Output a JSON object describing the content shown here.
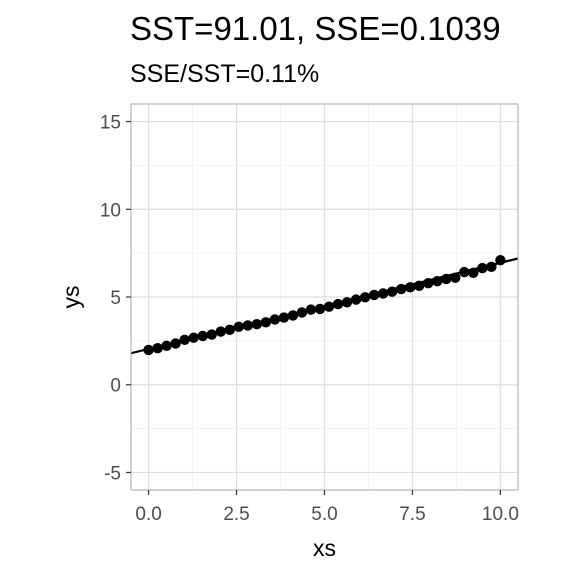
{
  "chart_data": {
    "type": "scatter",
    "title": "SST=91.01, SSE=0.1039",
    "subtitle": "SSE/SST=0.11%",
    "xlabel": "xs",
    "ylabel": "ys",
    "xlim": [
      -0.5,
      10.5
    ],
    "ylim": [
      -6,
      16
    ],
    "x_ticks": [
      0.0,
      2.5,
      5.0,
      7.5,
      10.0
    ],
    "x_tick_labels": [
      "0.0",
      "2.5",
      "5.0",
      "7.5",
      "10.0"
    ],
    "y_ticks": [
      -5,
      0,
      5,
      10,
      15
    ],
    "y_tick_labels": [
      "-5",
      "0",
      "5",
      "10",
      "15"
    ],
    "grid": true,
    "series": [
      {
        "type": "scatter",
        "x": [
          0.0,
          0.2564,
          0.5128,
          0.7692,
          1.0256,
          1.2821,
          1.5385,
          1.7949,
          2.0513,
          2.3077,
          2.5641,
          2.8205,
          3.0769,
          3.3333,
          3.5897,
          3.8462,
          4.1026,
          4.359,
          4.6154,
          4.8718,
          5.1282,
          5.3846,
          5.641,
          5.8974,
          6.1538,
          6.4103,
          6.6667,
          6.9231,
          7.1795,
          7.4359,
          7.6923,
          7.9487,
          8.2051,
          8.4615,
          8.7179,
          8.9744,
          9.2308,
          9.4872,
          9.7436,
          10.0
        ],
        "y": [
          1.98,
          2.08,
          2.22,
          2.35,
          2.56,
          2.68,
          2.78,
          2.86,
          3.03,
          3.13,
          3.3,
          3.38,
          3.45,
          3.56,
          3.72,
          3.83,
          3.95,
          4.12,
          4.28,
          4.32,
          4.45,
          4.6,
          4.7,
          4.85,
          4.98,
          5.12,
          5.2,
          5.3,
          5.45,
          5.55,
          5.64,
          5.79,
          5.9,
          6.03,
          6.1,
          6.42,
          6.38,
          6.65,
          6.72,
          7.1
        ]
      },
      {
        "type": "line",
        "x": [
          -0.5,
          10.5
        ],
        "y": [
          1.795,
          7.195
        ]
      }
    ],
    "colors": {
      "panel_background": "#ffffff",
      "panel_border": "#b3b3b3",
      "grid_major": "#dedede",
      "grid_minor": "#efefef",
      "points": "#000000",
      "line": "#000000",
      "tick_text": "#4d4d4d",
      "tick_mark": "#333333"
    }
  }
}
